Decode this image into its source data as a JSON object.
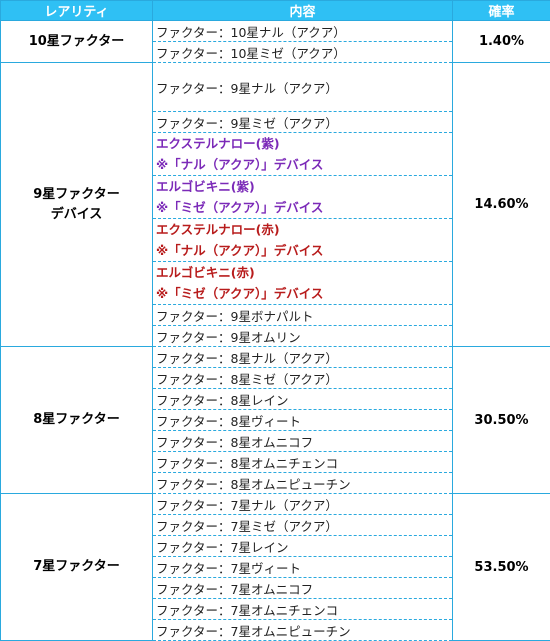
{
  "header": {
    "rarity": "レアリティ",
    "content": "内容",
    "rate": "確率"
  },
  "groups": [
    {
      "rarity_lines": [
        "10星ファクター"
      ],
      "rate": "1.40%",
      "items": [
        {
          "lines": [
            "ファクター：10星ナル（アクア）"
          ],
          "style": "plain"
        },
        {
          "lines": [
            "ファクター：10星ミゼ（アクア）"
          ],
          "style": "plain"
        }
      ]
    },
    {
      "rarity_lines": [
        "9星ファクター",
        "デバイス"
      ],
      "rate": "14.60%",
      "items": [
        {
          "lines": [
            "ファクター：9星ナル（アクア）"
          ],
          "style": "plain"
        },
        {
          "lines": [
            "ファクター：9星ミゼ（アクア）"
          ],
          "style": "plain"
        },
        {
          "lines": [
            "エクステルナロー(紫)",
            "※「ナル（アクア）」デバイス"
          ],
          "style": "purple"
        },
        {
          "lines": [
            "エルゴビキニ(紫)",
            "※「ミゼ（アクア）」デバイス"
          ],
          "style": "purple"
        },
        {
          "lines": [
            "エクステルナロー(赤)",
            "※「ナル（アクア）」デバイス"
          ],
          "style": "red"
        },
        {
          "lines": [
            "エルゴビキニ(赤)",
            "※「ミゼ（アクア）」デバイス"
          ],
          "style": "red"
        },
        {
          "lines": [
            "ファクター：9星ボナパルト"
          ],
          "style": "plain"
        },
        {
          "lines": [
            "ファクター：9星オムリン"
          ],
          "style": "plain"
        }
      ]
    },
    {
      "rarity_lines": [
        "8星ファクター"
      ],
      "rate": "30.50%",
      "items": [
        {
          "lines": [
            "ファクター：8星ナル（アクア）"
          ],
          "style": "plain"
        },
        {
          "lines": [
            "ファクター：8星ミゼ（アクア）"
          ],
          "style": "plain"
        },
        {
          "lines": [
            "ファクター：8星レイン"
          ],
          "style": "plain"
        },
        {
          "lines": [
            "ファクター：8星ヴィート"
          ],
          "style": "plain"
        },
        {
          "lines": [
            "ファクター：8星オムニコフ"
          ],
          "style": "plain"
        },
        {
          "lines": [
            "ファクター：8星オムニチェンコ"
          ],
          "style": "plain"
        },
        {
          "lines": [
            "ファクター：8星オムニピューチン"
          ],
          "style": "plain"
        }
      ]
    },
    {
      "rarity_lines": [
        "7星ファクター"
      ],
      "rate": "53.50%",
      "items": [
        {
          "lines": [
            "ファクター：7星ナル（アクア）"
          ],
          "style": "plain"
        },
        {
          "lines": [
            "ファクター：7星ミゼ（アクア）"
          ],
          "style": "plain"
        },
        {
          "lines": [
            "ファクター：7星レイン"
          ],
          "style": "plain"
        },
        {
          "lines": [
            "ファクター：7星ヴィート"
          ],
          "style": "plain"
        },
        {
          "lines": [
            "ファクター：7星オムニコフ"
          ],
          "style": "plain"
        },
        {
          "lines": [
            "ファクター：7星オムニチェンコ"
          ],
          "style": "plain"
        },
        {
          "lines": [
            "ファクター：7星オムニピューチン"
          ],
          "style": "plain"
        }
      ]
    }
  ]
}
